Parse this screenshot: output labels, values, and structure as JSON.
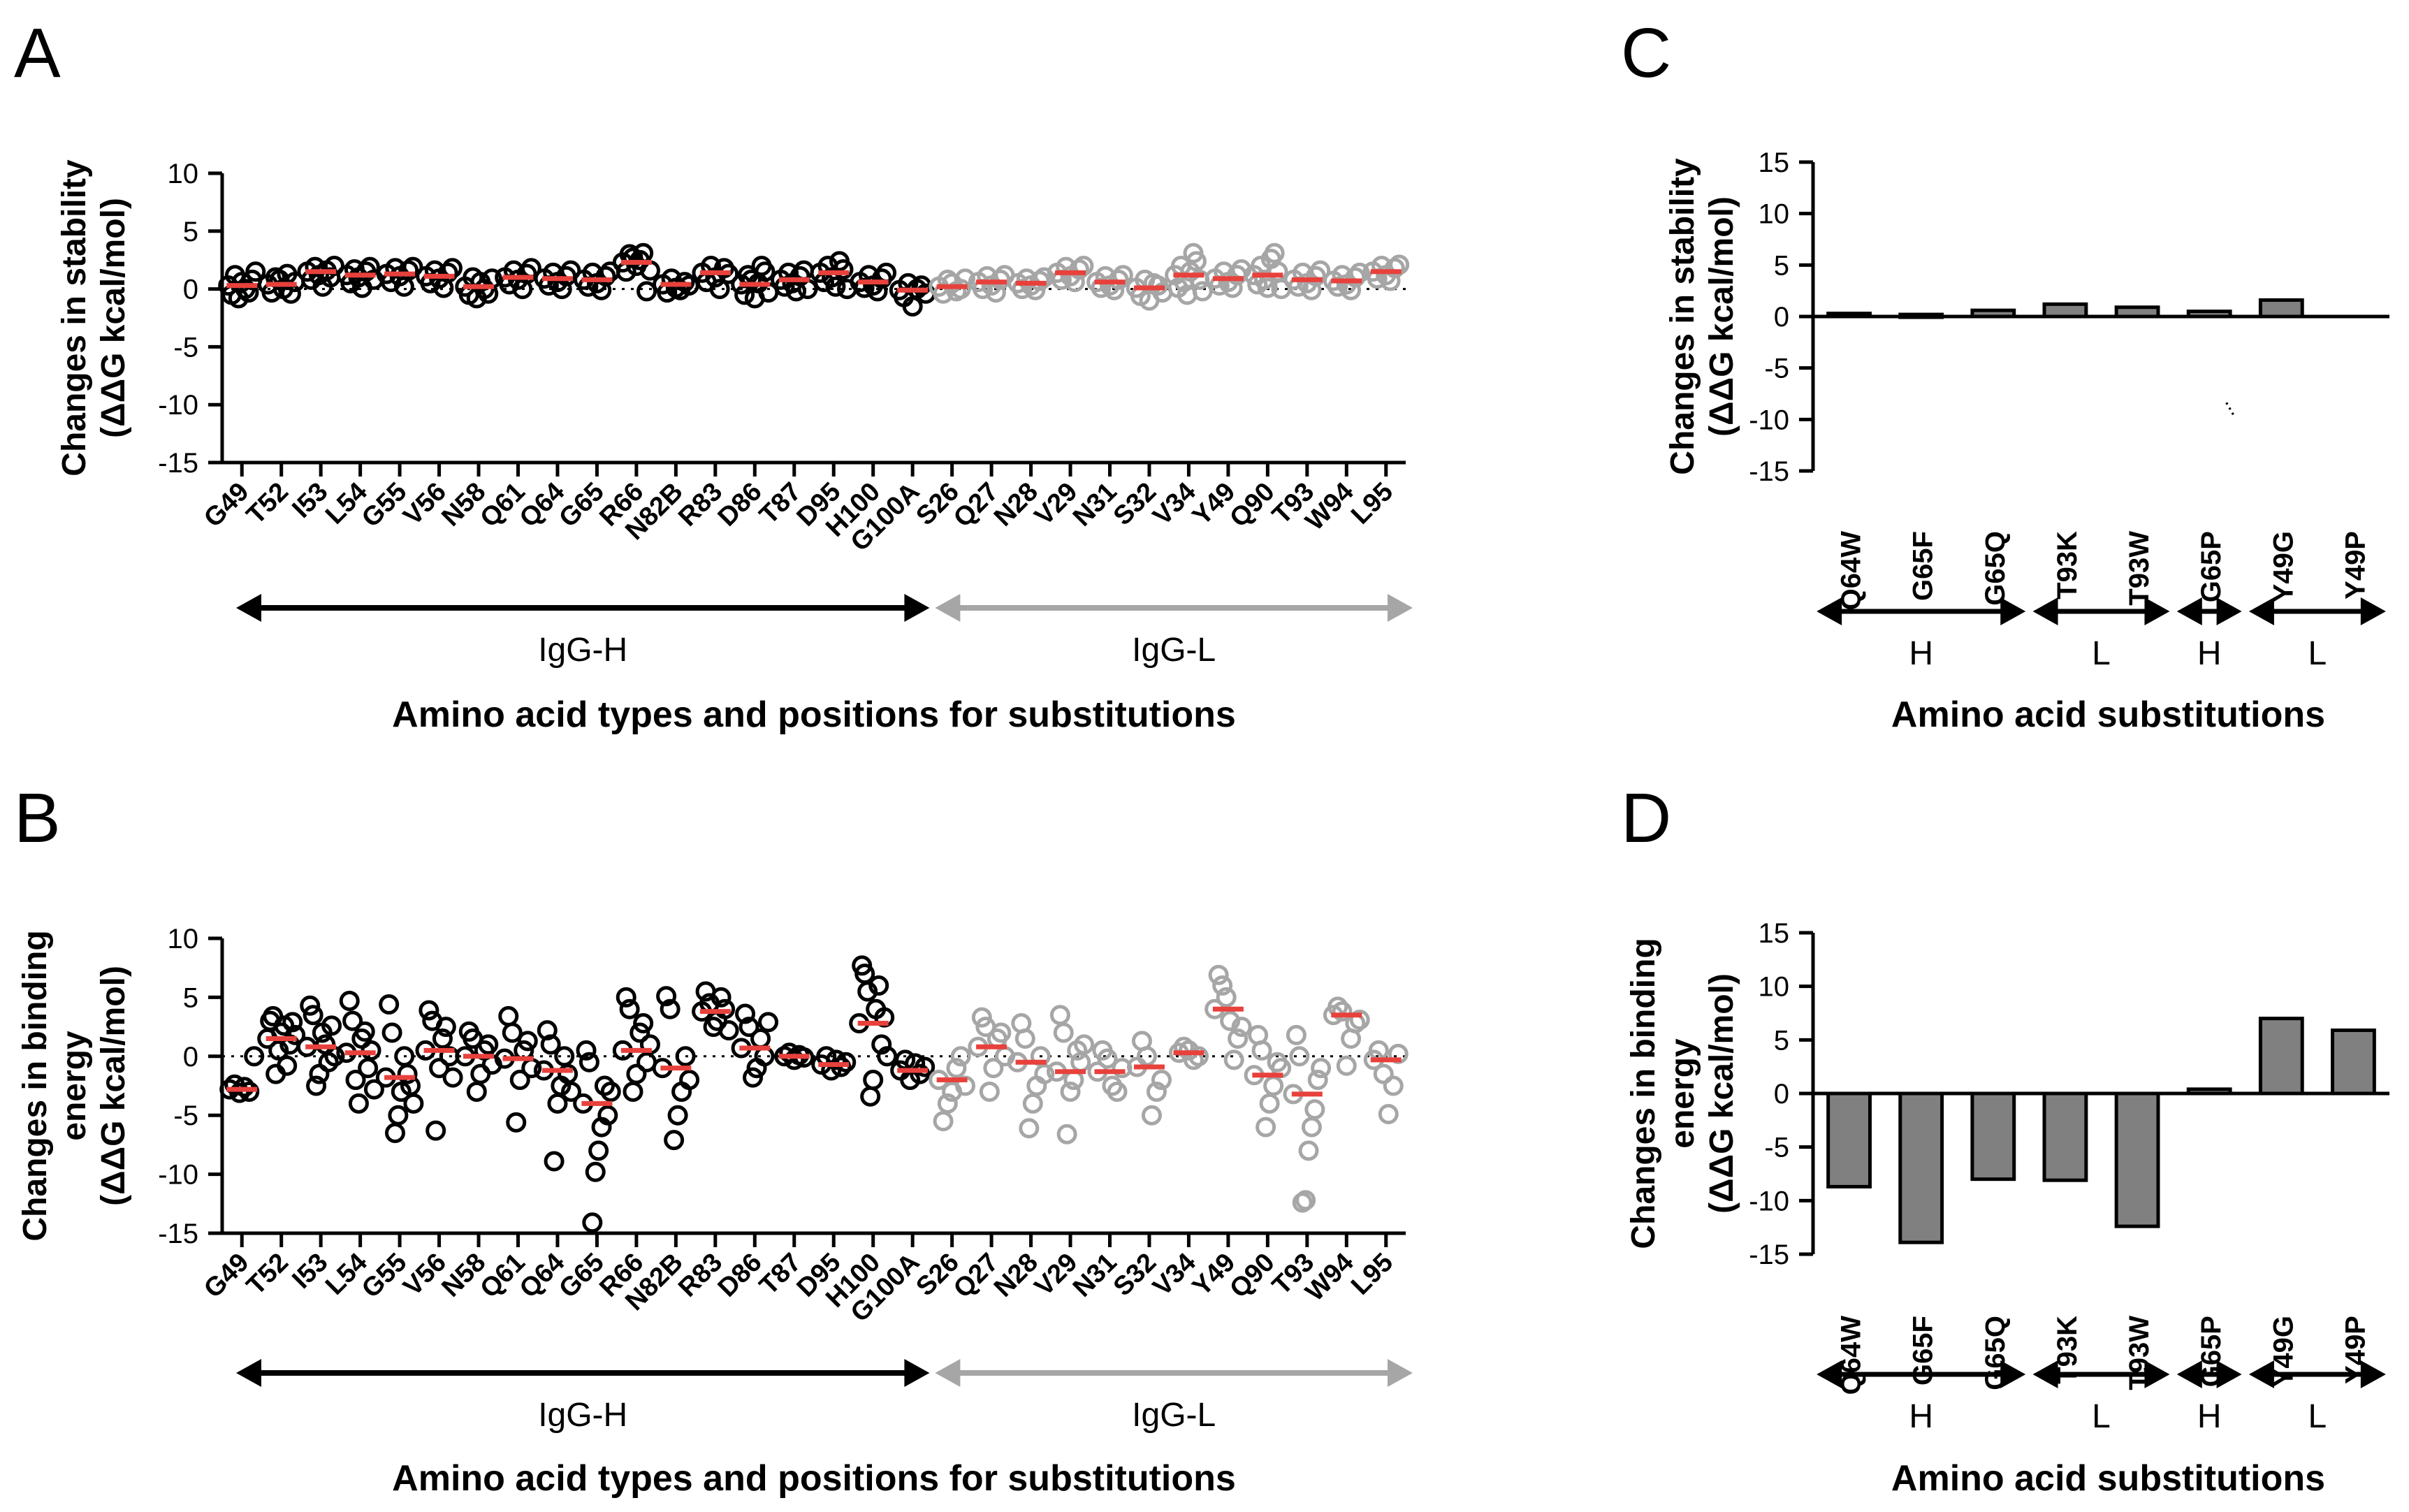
{
  "panel_letters": [
    "A",
    "B",
    "C",
    "D"
  ],
  "chart_data": [
    {
      "panel": "A",
      "type": "scatter",
      "ylabel": [
        "Changes in stability",
        "(ΔΔG kcal/mol)"
      ],
      "xlabel": "Amino acid types and positions for substitutions",
      "ylim": [
        -15,
        10
      ],
      "yticks": [
        10,
        5,
        0,
        -5,
        -10,
        -15
      ],
      "categories": [
        "G49",
        "T52",
        "I53",
        "L54",
        "G55",
        "V56",
        "N58",
        "Q61",
        "Q64",
        "G65",
        "R66",
        "N82B",
        "R83",
        "D86",
        "T87",
        "D95",
        "H100",
        "G100A",
        "S26",
        "Q27",
        "N28",
        "V29",
        "N31",
        "S32",
        "V34",
        "Y49",
        "Q90",
        "T93",
        "W94",
        "L95"
      ],
      "groups": [
        {
          "name": "IgG-H",
          "start": 0,
          "end": 17,
          "color": "#000000"
        },
        {
          "name": "IgG-L",
          "start": 18,
          "end": 29,
          "color": "#a6a6a6"
        }
      ],
      "series": [
        {
          "name": "IgG-H",
          "color": "#000000",
          "points": [
            [
              0.3,
              -0.5,
              1.2,
              -0.8,
              0.6,
              0.0,
              -0.3,
              0.8,
              1.5
            ],
            [
              0.4,
              -0.3,
              1.0,
              0.8,
              0.0,
              1.3,
              -0.4,
              0.6
            ],
            [
              1.5,
              0.8,
              1.9,
              1.2,
              0.2,
              1.6,
              1.0,
              2.0
            ],
            [
              1.2,
              0.5,
              1.7,
              1.0,
              0.1,
              1.5,
              1.9,
              0.8
            ],
            [
              1.3,
              0.6,
              1.8,
              1.1,
              0.2,
              1.6,
              1.9
            ],
            [
              1.1,
              0.5,
              1.6,
              0.9,
              0.1,
              1.4,
              1.8
            ],
            [
              0.2,
              -0.5,
              1.0,
              -0.8,
              0.6,
              0.0,
              -0.4,
              0.9
            ],
            [
              1.0,
              0.4,
              1.6,
              0.8,
              0.0,
              1.3,
              1.8
            ],
            [
              0.9,
              0.3,
              1.4,
              0.6,
              0.0,
              1.1,
              1.6
            ],
            [
              0.8,
              0.2,
              1.4,
              0.5,
              -0.1,
              1.1,
              1.5
            ],
            [
              2.3,
              1.5,
              3.0,
              2.7,
              2.0,
              2.5,
              3.1,
              -0.2,
              1.6
            ],
            [
              0.4,
              -0.3,
              0.9,
              0.1,
              -0.1,
              0.6,
              0.3
            ],
            [
              1.4,
              0.6,
              2.0,
              1.0,
              0.0,
              1.8,
              1.3
            ],
            [
              0.4,
              -0.5,
              1.2,
              0.8,
              -0.8,
              0.5,
              2.0,
              1.5,
              -0.3
            ],
            [
              0.8,
              0.2,
              1.4,
              0.5,
              -0.2,
              1.1,
              1.6,
              0.0
            ],
            [
              1.4,
              0.6,
              2.0,
              1.0,
              0.2,
              2.4,
              1.7,
              0.0
            ],
            [
              0.6,
              0.1,
              1.2,
              0.3,
              -0.2,
              0.9,
              1.4
            ],
            [
              -0.1,
              -0.7,
              0.5,
              -1.5,
              0.0,
              0.3,
              -0.4
            ]
          ]
        },
        {
          "name": "IgG-L",
          "color": "#a6a6a6",
          "points": [
            [
              0.2,
              -0.4,
              0.8,
              0.5,
              -0.2,
              0.0,
              0.9
            ],
            [
              0.6,
              0.0,
              1.1,
              0.3,
              -0.3,
              0.8,
              1.2
            ],
            [
              0.5,
              0.0,
              0.9,
              0.3,
              -0.1,
              0.7,
              1.0
            ],
            [
              1.4,
              0.8,
              1.9,
              1.1,
              0.6,
              1.7,
              2.0
            ],
            [
              0.6,
              0.1,
              1.1,
              0.3,
              -0.1,
              0.8,
              1.2
            ],
            [
              0.1,
              -0.6,
              0.8,
              -1.0,
              0.5,
              0.3,
              -0.3
            ],
            [
              1.2,
              0.1,
              2.0,
              0.6,
              -0.5,
              1.5,
              3.1,
              2.4,
              0.8,
              -0.2
            ],
            [
              0.9,
              0.3,
              1.5,
              0.6,
              0.1,
              1.2,
              1.7
            ],
            [
              1.2,
              0.4,
              2.0,
              0.8,
              0.1,
              2.6,
              3.1,
              1.5,
              0.0
            ],
            [
              0.8,
              0.2,
              1.4,
              0.5,
              -0.1,
              1.1,
              1.6
            ],
            [
              0.7,
              0.2,
              1.2,
              0.4,
              -0.1,
              1.0,
              1.4
            ],
            [
              1.5,
              0.9,
              2.0,
              1.2,
              0.7,
              1.8,
              2.1
            ]
          ]
        }
      ],
      "medians": [
        0.3,
        0.4,
        1.5,
        1.2,
        1.3,
        1.1,
        0.2,
        1.0,
        0.9,
        0.8,
        2.3,
        0.4,
        1.4,
        0.4,
        0.8,
        1.4,
        0.6,
        -0.1,
        0.2,
        0.6,
        0.5,
        1.4,
        0.6,
        0.1,
        1.2,
        0.9,
        1.2,
        0.8,
        0.7,
        1.5
      ]
    },
    {
      "panel": "B",
      "type": "scatter",
      "ylabel": [
        "Changes in binding",
        "energy",
        "(ΔΔG kcal/mol)"
      ],
      "xlabel": "Amino acid types and positions for substitutions",
      "ylim": [
        -15,
        10
      ],
      "yticks": [
        10,
        5,
        0,
        -5,
        -10,
        -15
      ],
      "categories": [
        "G49",
        "T52",
        "I53",
        "L54",
        "G55",
        "V56",
        "N58",
        "Q61",
        "Q64",
        "G65",
        "R66",
        "N82B",
        "R83",
        "D86",
        "T87",
        "D95",
        "H100",
        "G100A",
        "S26",
        "Q27",
        "N28",
        "V29",
        "N31",
        "S32",
        "V34",
        "Y49",
        "Q90",
        "T93",
        "W94",
        "L95"
      ],
      "groups": [
        {
          "name": "IgG-H",
          "start": 0,
          "end": 17,
          "color": "#000000"
        },
        {
          "name": "IgG-L",
          "start": 18,
          "end": 29,
          "color": "#a6a6a6"
        }
      ],
      "series": [
        {
          "name": "IgG-H",
          "color": "#000000",
          "points": [
            [
              -2.8,
              -2.4,
              -3.1,
              -2.6,
              -3.0,
              0.0
            ],
            [
              1.5,
              3.0,
              3.4,
              -1.5,
              0.5,
              2.0,
              2.6,
              -0.8,
              1.0,
              2.9,
              1.8
            ],
            [
              0.8,
              4.3,
              3.5,
              -2.5,
              -1.5,
              2.0,
              1.0,
              -0.5,
              2.6,
              0.0
            ],
            [
              0.3,
              4.7,
              3.0,
              -2.0,
              -4.0,
              1.5,
              2.1,
              -1.0,
              0.5,
              -2.8
            ],
            [
              -1.8,
              4.4,
              2.0,
              -6.5,
              -5.0,
              -3.0,
              0.0,
              -1.5,
              -2.5,
              -4.0
            ],
            [
              0.5,
              3.9,
              3.0,
              -6.3,
              -1.0,
              1.5,
              2.5,
              0.0,
              -1.8
            ],
            [
              0.0,
              2.1,
              1.5,
              -3.0,
              -1.5,
              0.5,
              1.0,
              -0.7
            ],
            [
              -0.2,
              3.4,
              2.0,
              -5.6,
              -2.0,
              0.5,
              1.3,
              -1.0
            ],
            [
              -1.2,
              2.2,
              1.0,
              -8.9,
              -4.0,
              -2.5,
              0.0,
              -1.5,
              -3.0
            ],
            [
              -4.0,
              0.5,
              -0.5,
              -14.1,
              -9.8,
              -8.0,
              -6.0,
              -2.5,
              -5.0,
              -3.0
            ],
            [
              0.5,
              5.0,
              4.0,
              -3.0,
              -1.5,
              2.0,
              2.8,
              -0.5,
              1.0
            ],
            [
              -1.0,
              5.1,
              4.0,
              -7.1,
              -5.0,
              -3.0,
              0.0,
              -2.0
            ],
            [
              3.8,
              5.5,
              4.5,
              2.5,
              3.0,
              5.0,
              4.0,
              2.2
            ],
            [
              0.7,
              3.6,
              2.5,
              -1.8,
              -1.0,
              1.5,
              0.0,
              2.9
            ],
            [
              0.0,
              0.3,
              -0.3,
              0.1,
              -0.1
            ],
            [
              -0.7,
              0.0,
              -1.2,
              -0.3,
              -0.9,
              -0.5
            ],
            [
              2.8,
              7.7,
              7.0,
              5.5,
              -3.4,
              -2.0,
              4.0,
              6.0,
              1.0,
              3.3,
              0.0
            ],
            [
              -1.2,
              -0.3,
              -2.0,
              -0.6,
              -1.5,
              -0.9
            ]
          ]
        },
        {
          "name": "IgG-L",
          "color": "#a6a6a6",
          "points": [
            [
              -2.0,
              -5.5,
              -4.0,
              -3.0,
              -1.0,
              0.0,
              -2.5
            ],
            [
              0.8,
              3.3,
              2.5,
              -3.0,
              -1.0,
              1.5,
              2.0,
              0.0
            ],
            [
              -0.5,
              2.8,
              1.5,
              -6.1,
              -4.0,
              -2.5,
              0.0,
              -1.5
            ],
            [
              -1.3,
              3.5,
              2.0,
              -6.6,
              -3.0,
              -2.0,
              0.5,
              -0.5,
              1.0
            ],
            [
              -1.3,
              0.5,
              -0.2,
              -2.5,
              -3.0,
              -1.0
            ],
            [
              -0.9,
              1.3,
              0.0,
              -5.0,
              -3.0,
              -2.0
            ],
            [
              0.3,
              0.8,
              0.5,
              -0.3,
              0.0
            ],
            [
              4.0,
              6.9,
              6.0,
              5.0,
              3.0,
              -0.3,
              1.5,
              2.5
            ],
            [
              -1.6,
              1.8,
              0.5,
              -6.0,
              -4.0,
              -2.5,
              -0.5,
              -1.0
            ],
            [
              -3.2,
              1.8,
              0.0,
              -12.4,
              -12.2,
              -8.0,
              -6.0,
              -4.5,
              -2.0,
              -1.0
            ],
            [
              3.5,
              4.2,
              3.8,
              -0.8,
              1.5,
              2.8,
              3.1
            ],
            [
              -0.3,
              0.5,
              -1.5,
              -4.9,
              -2.5,
              0.2
            ]
          ]
        }
      ],
      "medians": [
        -2.8,
        1.5,
        0.8,
        0.3,
        -1.8,
        0.5,
        0.0,
        -0.2,
        -1.2,
        -4.0,
        0.5,
        -1.0,
        3.8,
        0.7,
        0.0,
        -0.7,
        2.8,
        -1.2,
        -2.0,
        0.8,
        -0.5,
        -1.3,
        -1.3,
        -0.9,
        0.3,
        4.0,
        -1.6,
        -3.2,
        3.5,
        -0.3
      ]
    },
    {
      "panel": "C",
      "type": "bar",
      "ylabel": [
        "Changes in stability",
        "(ΔΔG kcal/mol)"
      ],
      "xlabel": "Amino acid substitutions",
      "ylim": [
        -15,
        15
      ],
      "yticks": [
        15,
        10,
        5,
        0,
        -5,
        -10,
        -15
      ],
      "categories": [
        "Q64W",
        "G65F",
        "G65Q",
        "T93K",
        "T93W",
        "G65P",
        "Y49G",
        "Y49P"
      ],
      "values": [
        0.3,
        0.2,
        0.6,
        1.2,
        0.9,
        0.5,
        1.6,
        0.0
      ],
      "annotation": "...",
      "groups": [
        {
          "name": "H",
          "start": 0,
          "end": 2
        },
        {
          "name": "L",
          "start": 3,
          "end": 4
        },
        {
          "name": "H",
          "start": 5,
          "end": 5
        },
        {
          "name": "L",
          "start": 6,
          "end": 7
        }
      ]
    },
    {
      "panel": "D",
      "type": "bar",
      "ylabel": [
        "Changes in binding",
        "energy",
        "(ΔΔG kcal/mol)"
      ],
      "xlabel": "Amino acid substitutions",
      "ylim": [
        -15,
        15
      ],
      "yticks": [
        15,
        10,
        5,
        0,
        -5,
        -10,
        -15
      ],
      "categories": [
        "Q64W",
        "G65F",
        "G65Q",
        "T93K",
        "T93W",
        "G65P",
        "Y49G",
        "Y49P"
      ],
      "values": [
        -8.7,
        -13.9,
        -8.0,
        -8.1,
        -12.4,
        0.4,
        7.0,
        5.9
      ],
      "groups": [
        {
          "name": "H",
          "start": 0,
          "end": 2
        },
        {
          "name": "L",
          "start": 3,
          "end": 4
        },
        {
          "name": "H",
          "start": 5,
          "end": 5
        },
        {
          "name": "L",
          "start": 6,
          "end": 7
        }
      ]
    }
  ]
}
